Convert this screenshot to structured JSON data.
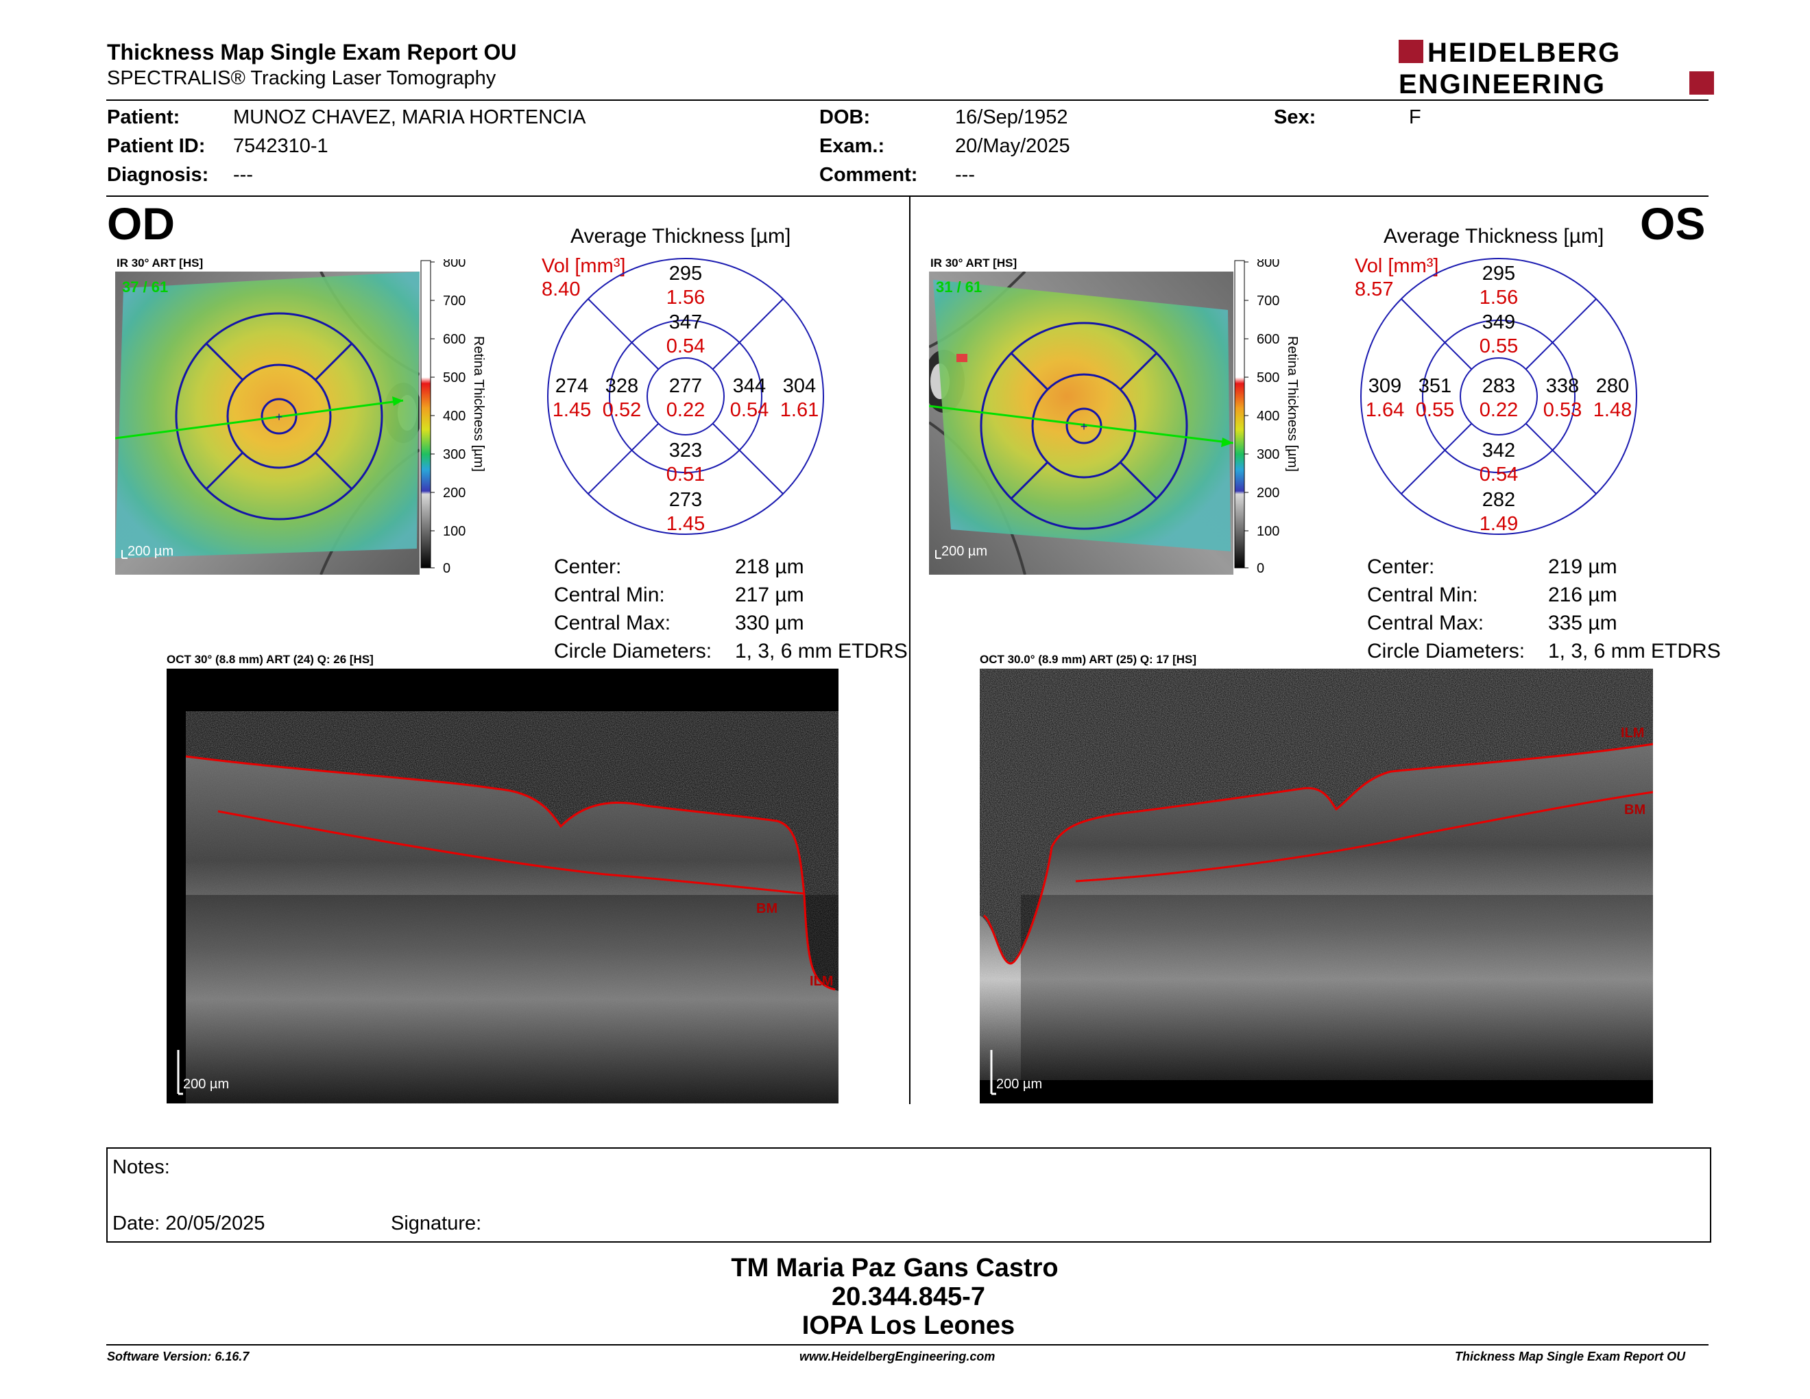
{
  "header": {
    "title": "Thickness Map Single Exam Report OU",
    "subtitle": "SPECTRALIS® Tracking Laser Tomography",
    "logo_line1": "HEIDELBERG",
    "logo_line2": "ENGINEERING"
  },
  "patient": {
    "patient_label": "Patient:",
    "patient_value": "MUNOZ CHAVEZ, MARIA HORTENCIA",
    "id_label": "Patient ID:",
    "id_value": "7542310-1",
    "diagnosis_label": "Diagnosis:",
    "diagnosis_value": "---",
    "dob_label": "DOB:",
    "dob_value": "16/Sep/1952",
    "exam_label": "Exam.:",
    "exam_value": "20/May/2025",
    "comment_label": "Comment:",
    "comment_value": "---",
    "sex_label": "Sex:",
    "sex_value": "F"
  },
  "scale": {
    "ticks": [
      "800",
      "700",
      "600",
      "500",
      "400",
      "300",
      "200",
      "100",
      "0"
    ],
    "label": "Retina Thickness [µm]"
  },
  "od": {
    "eye": "OD",
    "ir_caption": "IR 30° ART [HS]",
    "ir_counter": "37 / 61",
    "scale_bar": "200 µm",
    "avg_title": "Average Thickness [µm]",
    "vol_label": "Vol [mm³]",
    "vol_value": "8.40",
    "sectors": {
      "outer_sup": {
        "t": "295",
        "v": "1.56"
      },
      "inner_sup": {
        "t": "347",
        "v": "0.54"
      },
      "outer_left": {
        "t": "274",
        "v": "1.45"
      },
      "inner_left": {
        "t": "328",
        "v": "0.52"
      },
      "center": {
        "t": "277",
        "v": "0.22"
      },
      "inner_right": {
        "t": "344",
        "v": "0.54"
      },
      "outer_right": {
        "t": "304",
        "v": "1.61"
      },
      "inner_inf": {
        "t": "323",
        "v": "0.51"
      },
      "outer_inf": {
        "t": "273",
        "v": "1.45"
      }
    },
    "stats": [
      {
        "label": "Center:",
        "value": "218 µm"
      },
      {
        "label": "Central Min:",
        "value": "217 µm"
      },
      {
        "label": "Central Max:",
        "value": "330 µm"
      },
      {
        "label": "Circle Diameters:",
        "value": "1, 3, 6 mm ETDRS"
      }
    ],
    "oct_caption": "OCT 30° (8.8 mm) ART (24) Q: 26 [HS]",
    "oct_scale": "200 µm",
    "label_bm": "BM",
    "label_ilm": "ILM"
  },
  "os": {
    "eye": "OS",
    "ir_caption": "IR 30° ART [HS]",
    "ir_counter": "31 / 61",
    "scale_bar": "200 µm",
    "avg_title": "Average Thickness [µm]",
    "vol_label": "Vol [mm³]",
    "vol_value": "8.57",
    "sectors": {
      "outer_sup": {
        "t": "295",
        "v": "1.56"
      },
      "inner_sup": {
        "t": "349",
        "v": "0.55"
      },
      "outer_left": {
        "t": "309",
        "v": "1.64"
      },
      "inner_left": {
        "t": "351",
        "v": "0.55"
      },
      "center": {
        "t": "283",
        "v": "0.22"
      },
      "inner_right": {
        "t": "338",
        "v": "0.53"
      },
      "outer_right": {
        "t": "280",
        "v": "1.48"
      },
      "inner_inf": {
        "t": "342",
        "v": "0.54"
      },
      "outer_inf": {
        "t": "282",
        "v": "1.49"
      }
    },
    "stats": [
      {
        "label": "Center:",
        "value": "219 µm"
      },
      {
        "label": "Central Min:",
        "value": "216 µm"
      },
      {
        "label": "Central Max:",
        "value": "335 µm"
      },
      {
        "label": "Circle Diameters:",
        "value": "1, 3, 6 mm ETDRS"
      }
    ],
    "oct_caption": "OCT 30.0° (8.9 mm) ART (25) Q: 17 [HS]",
    "oct_scale": "200 µm",
    "label_bm": "BM",
    "label_ilm": "ILM"
  },
  "notes": {
    "notes_label": "Notes:",
    "date_label": "Date: 20/05/2025",
    "signature_label": "Signature:"
  },
  "signature": {
    "name": "TM Maria Paz Gans Castro",
    "rut": "20.344.845-7",
    "institution": "IOPA Los Leones"
  },
  "footer": {
    "software": "Software Version: 6.16.7",
    "website": "www.HeidelbergEngineering.com",
    "report": "Thickness Map Single Exam Report OU"
  },
  "colors": {
    "accent_red": "#a3182d",
    "value_red": "#d40000",
    "grid_blue": "#1a1ab0"
  }
}
